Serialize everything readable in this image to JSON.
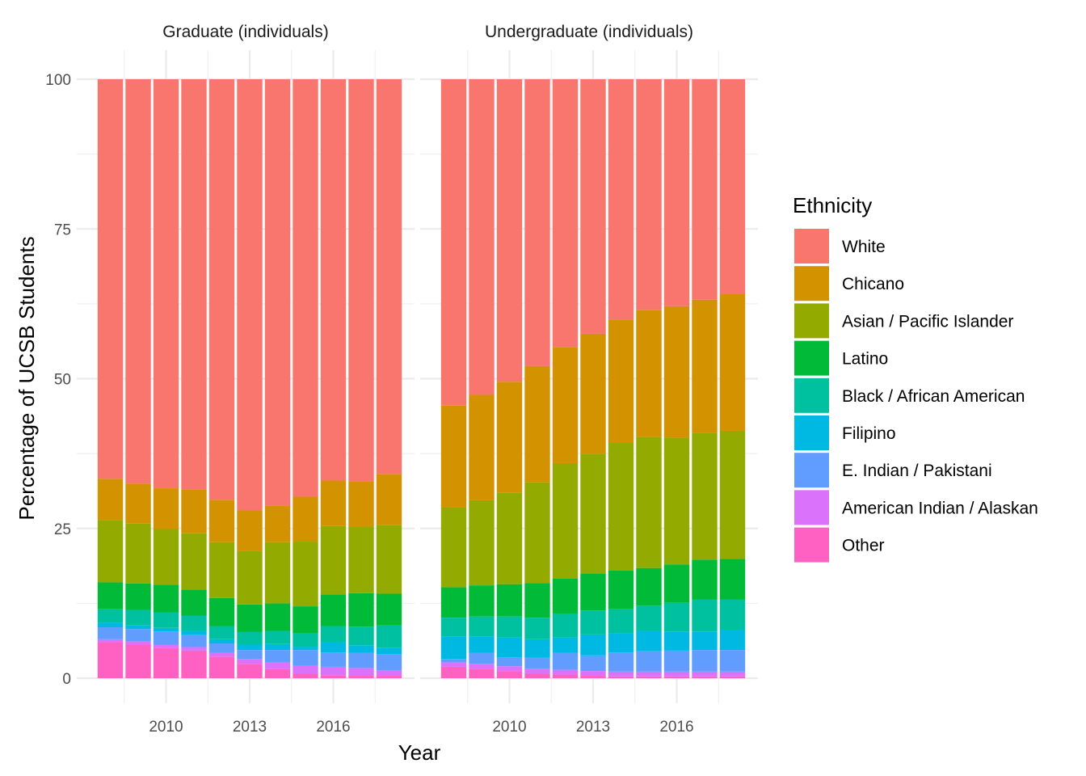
{
  "chart_data": {
    "type": "bar",
    "stacked": true,
    "xlabel": "Year",
    "ylabel": "Percentage of UCSB Students",
    "ylim": [
      0,
      100
    ],
    "yticks": [
      "0",
      "25",
      "50",
      "75",
      "100"
    ],
    "xticks": [
      "2010",
      "2013",
      "2016"
    ],
    "grid": true,
    "legend": {
      "title": "Ethnicity",
      "position": "right"
    },
    "categories": [
      2008,
      2009,
      2010,
      2011,
      2012,
      2013,
      2014,
      2015,
      2016,
      2017,
      2018
    ],
    "series_order": [
      "Other",
      "American Indian / Alaskan",
      "E. Indian / Pakistani",
      "Filipino",
      "Black / African American",
      "Latino",
      "Asian / Pacific Islander",
      "Chicano",
      "White"
    ],
    "legend_order": [
      "White",
      "Chicano",
      "Asian / Pacific Islander",
      "Latino",
      "Black / African American",
      "Filipino",
      "E. Indian / Pakistani",
      "American Indian / Alaskan",
      "Other"
    ],
    "colors": {
      "White": "#F8766D",
      "Chicano": "#D39200",
      "Asian / Pacific Islander": "#93AA00",
      "Latino": "#00BA38",
      "Black / African American": "#00C19F",
      "Filipino": "#00B9E3",
      "E. Indian / Pakistani": "#619CFF",
      "American Indian / Alaskan": "#DB72FB",
      "Other": "#FF61C3"
    },
    "panels": [
      {
        "title": "Graduate (individuals)",
        "series": [
          {
            "name": "Other",
            "values": [
              6.0,
              5.6,
              5.0,
              4.6,
              3.6,
              2.4,
              1.5,
              0.8,
              0.5,
              0.4,
              0.4
            ]
          },
          {
            "name": "American Indian / Alaskan",
            "values": [
              0.5,
              0.6,
              0.6,
              0.6,
              0.6,
              0.8,
              1.2,
              1.3,
              1.4,
              1.3,
              0.9
            ]
          },
          {
            "name": "E. Indian / Pakistani",
            "values": [
              2.0,
              2.0,
              2.2,
              2.0,
              1.6,
              1.5,
              2.0,
              2.6,
              2.4,
              2.5,
              2.7
            ]
          },
          {
            "name": "Filipino",
            "values": [
              0.8,
              0.6,
              0.6,
              0.7,
              0.7,
              0.9,
              1.0,
              0.5,
              1.7,
              1.3,
              1.1
            ]
          },
          {
            "name": "Black / African American",
            "values": [
              2.2,
              2.6,
              2.6,
              2.5,
              2.2,
              2.1,
              2.2,
              2.3,
              2.7,
              3.1,
              3.7
            ]
          },
          {
            "name": "Latino",
            "values": [
              4.5,
              4.4,
              4.6,
              4.4,
              4.7,
              4.6,
              4.6,
              4.5,
              5.3,
              5.6,
              5.3
            ]
          },
          {
            "name": "Asian / Pacific Islander",
            "values": [
              10.4,
              10.0,
              9.3,
              9.4,
              9.3,
              8.9,
              10.2,
              10.8,
              11.4,
              11.1,
              11.5
            ]
          },
          {
            "name": "Chicano",
            "values": [
              6.9,
              6.7,
              6.8,
              7.3,
              7.1,
              6.8,
              6.1,
              7.5,
              7.6,
              7.5,
              8.5
            ]
          },
          {
            "name": "White",
            "values": [
              66.7,
              67.5,
              68.3,
              68.5,
              70.2,
              72.0,
              71.2,
              69.7,
              67.0,
              67.2,
              65.9
            ]
          }
        ]
      },
      {
        "title": "Undergraduate (individuals)",
        "series": [
          {
            "name": "Other",
            "values": [
              1.9,
              1.6,
              1.2,
              0.8,
              0.6,
              0.4,
              0.3,
              0.3,
              0.3,
              0.3,
              0.3
            ]
          },
          {
            "name": "American Indian / Alaskan",
            "values": [
              0.7,
              0.8,
              0.8,
              0.8,
              0.8,
              0.8,
              0.8,
              0.8,
              0.8,
              0.8,
              0.8
            ]
          },
          {
            "name": "E. Indian / Pakistani",
            "values": [
              0.6,
              1.8,
              1.5,
              1.8,
              2.8,
              2.6,
              3.2,
              3.4,
              3.5,
              3.6,
              3.6
            ]
          },
          {
            "name": "Filipino",
            "values": [
              3.8,
              2.8,
              3.3,
              3.1,
              2.6,
              3.5,
              3.2,
              3.4,
              3.2,
              3.1,
              3.4
            ]
          },
          {
            "name": "Black / African American",
            "values": [
              3.1,
              3.3,
              3.5,
              3.6,
              4.0,
              4.0,
              4.0,
              4.2,
              4.8,
              5.3,
              5.0
            ]
          },
          {
            "name": "Latino",
            "values": [
              5.1,
              5.2,
              5.4,
              5.8,
              5.8,
              6.2,
              6.5,
              6.3,
              6.4,
              6.7,
              6.8
            ]
          },
          {
            "name": "Asian / Pacific Islander",
            "values": [
              13.4,
              14.2,
              15.3,
              16.8,
              19.3,
              20.0,
              21.4,
              21.9,
              21.2,
              21.1,
              21.4
            ]
          },
          {
            "name": "Chicano",
            "values": [
              16.9,
              17.6,
              18.5,
              19.4,
              19.4,
              20.0,
              20.5,
              21.2,
              21.9,
              22.3,
              22.8
            ]
          },
          {
            "name": "White",
            "values": [
              54.5,
              52.7,
              50.5,
              47.9,
              44.7,
              42.5,
              40.1,
              38.5,
              37.9,
              36.8,
              35.9
            ]
          }
        ]
      }
    ]
  }
}
